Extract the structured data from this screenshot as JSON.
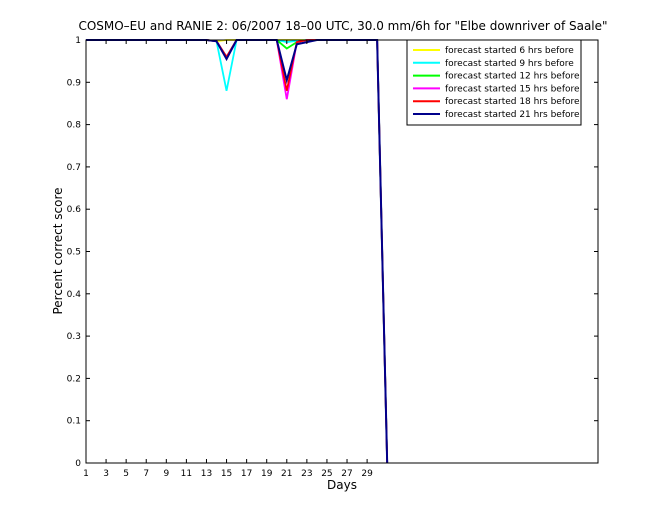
{
  "chart_data": {
    "type": "line",
    "title": "COSMO–EU and RANIE 2: 06/2007 18–00 UTC, 30.0 mm/6h for \"Elbe downriver of Saale\"",
    "xlabel": "Days",
    "ylabel": "Percent correct score",
    "xlim": [
      1,
      52
    ],
    "ylim": [
      0,
      1
    ],
    "xticks": [
      1,
      3,
      5,
      7,
      9,
      11,
      13,
      15,
      17,
      19,
      21,
      23,
      25,
      27,
      29
    ],
    "yticks": [
      0,
      0.1,
      0.2,
      0.3,
      0.4,
      0.5,
      0.6,
      0.7,
      0.8,
      0.9,
      1
    ],
    "yticklabels": [
      "0",
      "0.1",
      "0.2",
      "0.3",
      "0.4",
      "0.5",
      "0.6",
      "0.7",
      "0.8",
      "0.9",
      "1"
    ],
    "legend_position": "top-right",
    "grid": false,
    "x": [
      1,
      2,
      3,
      4,
      5,
      6,
      7,
      8,
      9,
      10,
      11,
      12,
      13,
      14,
      15,
      16,
      17,
      18,
      19,
      20,
      21,
      22,
      23,
      24,
      25,
      26,
      27,
      28,
      29,
      30,
      31
    ],
    "series": [
      {
        "name": "forecast started 6 hrs before",
        "color": "#ffff00",
        "values": [
          1,
          1,
          1,
          1,
          1,
          1,
          1,
          1,
          1,
          1,
          1,
          1,
          1,
          0.997,
          1,
          1,
          1,
          1,
          1,
          1,
          1,
          1,
          1,
          1,
          1,
          1,
          1,
          1,
          1,
          1,
          0
        ]
      },
      {
        "name": "forecast started 9 hrs before",
        "color": "#00ffff",
        "values": [
          1,
          1,
          1,
          1,
          1,
          1,
          1,
          1,
          1,
          1,
          1,
          1,
          1,
          0.997,
          0.88,
          1,
          1,
          1,
          1,
          1,
          0.995,
          0.998,
          1,
          1,
          1,
          1,
          1,
          1,
          1,
          1,
          0
        ]
      },
      {
        "name": "forecast started 12 hrs before",
        "color": "#00ff00",
        "values": [
          1,
          1,
          1,
          1,
          1,
          1,
          1,
          1,
          1,
          1,
          1,
          1,
          1,
          0.997,
          0.96,
          1,
          1,
          1,
          1,
          1,
          0.98,
          0.995,
          1,
          1,
          1,
          1,
          1,
          1,
          1,
          1,
          0
        ]
      },
      {
        "name": "forecast started 15 hrs before",
        "color": "#ff00ff",
        "values": [
          1,
          1,
          1,
          1,
          1,
          1,
          1,
          1,
          1,
          1,
          1,
          1,
          1,
          0.997,
          0.96,
          1,
          1,
          1,
          1,
          1,
          0.86,
          0.995,
          1,
          1,
          1,
          1,
          1,
          1,
          1,
          1,
          0
        ]
      },
      {
        "name": "forecast started 18 hrs before",
        "color": "#ff0000",
        "values": [
          1,
          1,
          1,
          1,
          1,
          1,
          1,
          1,
          1,
          1,
          1,
          1,
          1,
          0.997,
          0.96,
          1,
          1,
          1,
          1,
          1,
          0.88,
          0.995,
          1,
          1,
          1,
          1,
          1,
          1,
          1,
          1,
          0
        ]
      },
      {
        "name": "forecast started 21 hrs before",
        "color": "#0000ff",
        "values": [
          1,
          1,
          1,
          1,
          1,
          1,
          1,
          1,
          1,
          1,
          1,
          1,
          1,
          0.997,
          0.955,
          1,
          1,
          1,
          1,
          1,
          0.905,
          0.99,
          0.995,
          1,
          1,
          1,
          1,
          1,
          1,
          1,
          0
        ]
      }
    ],
    "trace_colors": [
      "#ffff00",
      "#00ffff",
      "#00ff00",
      "#ff00ff",
      "#ff0000",
      "#00008b"
    ]
  }
}
